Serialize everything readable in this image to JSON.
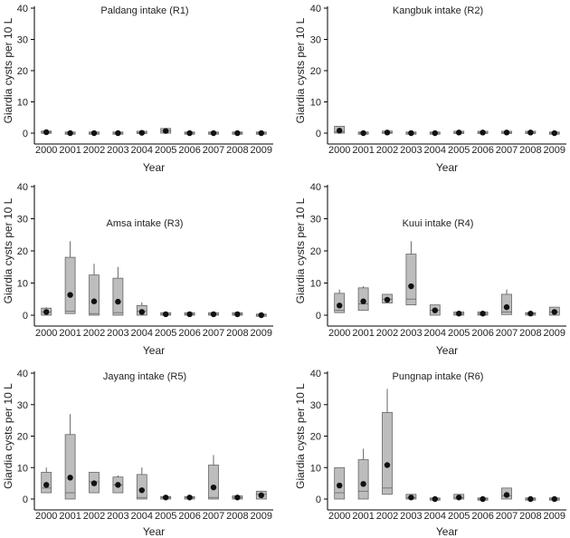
{
  "colors": {
    "box_fill": "#bdbdbd",
    "box_stroke": "#666666",
    "median_dot": "#111111",
    "axis": "#000000"
  },
  "chart_data": [
    {
      "type": "box",
      "title": "Paldang intake (R1)",
      "xlabel": "Year",
      "ylabel": "Giardia cysts per 10 L",
      "ylim": [
        0,
        40
      ],
      "yticks": [
        0,
        10,
        20,
        30,
        40
      ],
      "categories": [
        "2000",
        "2001",
        "2002",
        "2003",
        "2004",
        "2005",
        "2006",
        "2007",
        "2008",
        "2009"
      ],
      "boxes": [
        {
          "q1": 0,
          "median": 0.3,
          "q3": 0.6,
          "whisker_high": 0.6,
          "mean": 0.3
        },
        {
          "q1": 0,
          "median": 0,
          "q3": 0,
          "whisker_high": 0,
          "mean": 0
        },
        {
          "q1": 0,
          "median": 0,
          "q3": 0,
          "whisker_high": 0,
          "mean": 0
        },
        {
          "q1": 0,
          "median": 0,
          "q3": 0,
          "whisker_high": 0,
          "mean": 0
        },
        {
          "q1": 0,
          "median": 0.1,
          "q3": 0.5,
          "whisker_high": 0.5,
          "mean": 0.1
        },
        {
          "q1": 0,
          "median": 0.8,
          "q3": 1.5,
          "whisker_high": 1.5,
          "mean": 0.7
        },
        {
          "q1": 0,
          "median": 0,
          "q3": 0,
          "whisker_high": 0,
          "mean": 0
        },
        {
          "q1": 0,
          "median": 0,
          "q3": 0,
          "whisker_high": 0,
          "mean": 0
        },
        {
          "q1": 0,
          "median": 0,
          "q3": 0,
          "whisker_high": 0,
          "mean": 0
        },
        {
          "q1": 0,
          "median": 0,
          "q3": 0,
          "whisker_high": 0,
          "mean": 0
        }
      ]
    },
    {
      "type": "box",
      "title": "Kangbuk intake (R2)",
      "xlabel": "Year",
      "ylabel": "Giardia cysts per 10 L",
      "ylim": [
        0,
        40
      ],
      "yticks": [
        0,
        10,
        20,
        30,
        40
      ],
      "categories": [
        "2000",
        "2001",
        "2002",
        "2003",
        "2004",
        "2005",
        "2006",
        "2007",
        "2008",
        "2009"
      ],
      "boxes": [
        {
          "q1": 0,
          "median": 0.5,
          "q3": 2.2,
          "whisker_high": 2.2,
          "mean": 0.8
        },
        {
          "q1": 0,
          "median": 0,
          "q3": 0,
          "whisker_high": 0,
          "mean": 0
        },
        {
          "q1": 0,
          "median": 0.2,
          "q3": 0.6,
          "whisker_high": 0.6,
          "mean": 0.2
        },
        {
          "q1": 0,
          "median": 0,
          "q3": 0,
          "whisker_high": 0,
          "mean": 0
        },
        {
          "q1": 0,
          "median": 0,
          "q3": 0,
          "whisker_high": 0,
          "mean": 0
        },
        {
          "q1": 0,
          "median": 0.2,
          "q3": 0.5,
          "whisker_high": 0.5,
          "mean": 0.2
        },
        {
          "q1": 0,
          "median": 0.2,
          "q3": 0.5,
          "whisker_high": 0.5,
          "mean": 0.2
        },
        {
          "q1": 0,
          "median": 0.2,
          "q3": 0.5,
          "whisker_high": 0.5,
          "mean": 0.2
        },
        {
          "q1": 0,
          "median": 0.2,
          "q3": 0.5,
          "whisker_high": 0.5,
          "mean": 0.2
        },
        {
          "q1": 0,
          "median": 0,
          "q3": 0,
          "whisker_high": 0,
          "mean": 0
        }
      ]
    },
    {
      "type": "box",
      "title": "Amsa intake (R3)",
      "xlabel": "Year",
      "ylabel": "Giardia cysts per 10 L",
      "ylim": [
        0,
        40
      ],
      "yticks": [
        0,
        10,
        20,
        30,
        40
      ],
      "categories": [
        "2000",
        "2001",
        "2002",
        "2003",
        "2004",
        "2005",
        "2006",
        "2007",
        "2008",
        "2009"
      ],
      "boxes": [
        {
          "q1": 0,
          "median": 1.0,
          "q3": 2.2,
          "whisker_high": 2.5,
          "mean": 1.0
        },
        {
          "q1": 0.5,
          "median": 1.2,
          "q3": 18,
          "whisker_high": 23,
          "mean": 6.3
        },
        {
          "q1": 0,
          "median": 0.5,
          "q3": 12.5,
          "whisker_high": 16,
          "mean": 4.3
        },
        {
          "q1": 0,
          "median": 0.8,
          "q3": 11.5,
          "whisker_high": 15,
          "mean": 4.2
        },
        {
          "q1": 0,
          "median": 1.2,
          "q3": 3.0,
          "whisker_high": 4.0,
          "mean": 1.0
        },
        {
          "q1": 0,
          "median": 0.3,
          "q3": 0.8,
          "whisker_high": 0.8,
          "mean": 0.3
        },
        {
          "q1": 0,
          "median": 0.3,
          "q3": 0.8,
          "whisker_high": 0.8,
          "mean": 0.3
        },
        {
          "q1": 0,
          "median": 0.3,
          "q3": 0.8,
          "whisker_high": 0.8,
          "mean": 0.3
        },
        {
          "q1": 0,
          "median": 0.3,
          "q3": 0.8,
          "whisker_high": 0.8,
          "mean": 0.3
        },
        {
          "q1": 0,
          "median": 0,
          "q3": 0,
          "whisker_high": 0,
          "mean": 0
        }
      ]
    },
    {
      "type": "box",
      "title": "Kuui intake (R4)",
      "xlabel": "Year",
      "ylabel": "Giardia cysts per 10 L",
      "ylim": [
        0,
        40
      ],
      "yticks": [
        0,
        10,
        20,
        30,
        40
      ],
      "categories": [
        "2000",
        "2001",
        "2002",
        "2003",
        "2004",
        "2005",
        "2006",
        "2007",
        "2008",
        "2009"
      ],
      "boxes": [
        {
          "q1": 0.8,
          "median": 1.5,
          "q3": 6.8,
          "whisker_high": 8,
          "mean": 3.0
        },
        {
          "q1": 1.5,
          "median": 3.5,
          "q3": 8.5,
          "whisker_high": 9,
          "mean": 4.3
        },
        {
          "q1": 3.8,
          "median": 5.0,
          "q3": 6.5,
          "whisker_high": 6.5,
          "mean": 4.8
        },
        {
          "q1": 3.2,
          "median": 5.0,
          "q3": 19,
          "whisker_high": 23,
          "mean": 9.0
        },
        {
          "q1": 0,
          "median": 1.5,
          "q3": 3.2,
          "whisker_high": 3.2,
          "mean": 1.5
        },
        {
          "q1": 0,
          "median": 0.5,
          "q3": 1.0,
          "whisker_high": 1.0,
          "mean": 0.5
        },
        {
          "q1": 0,
          "median": 0.5,
          "q3": 1.0,
          "whisker_high": 1.0,
          "mean": 0.5
        },
        {
          "q1": 0.2,
          "median": 1.0,
          "q3": 6.5,
          "whisker_high": 8,
          "mean": 2.5
        },
        {
          "q1": 0,
          "median": 0.5,
          "q3": 0.8,
          "whisker_high": 0.8,
          "mean": 0.5
        },
        {
          "q1": 0,
          "median": 1.0,
          "q3": 2.5,
          "whisker_high": 2.5,
          "mean": 1.0
        }
      ]
    },
    {
      "type": "box",
      "title": "Jayang intake (R5)",
      "xlabel": "Year",
      "ylabel": "Giardia cysts per 10 L",
      "ylim": [
        0,
        40
      ],
      "yticks": [
        0,
        10,
        20,
        30,
        40
      ],
      "categories": [
        "2000",
        "2001",
        "2002",
        "2003",
        "2004",
        "2005",
        "2006",
        "2007",
        "2008",
        "2009"
      ],
      "boxes": [
        {
          "q1": 2.0,
          "median": 3.5,
          "q3": 8.5,
          "whisker_high": 10,
          "mean": 4.5
        },
        {
          "q1": 0,
          "median": 2.0,
          "q3": 20.5,
          "whisker_high": 27,
          "mean": 6.8
        },
        {
          "q1": 2.0,
          "median": 5.5,
          "q3": 8.5,
          "whisker_high": 8.5,
          "mean": 5.0
        },
        {
          "q1": 2.0,
          "median": 4.5,
          "q3": 7.0,
          "whisker_high": 7.5,
          "mean": 4.5
        },
        {
          "q1": 0,
          "median": 0.5,
          "q3": 7.8,
          "whisker_high": 10,
          "mean": 2.8
        },
        {
          "q1": 0,
          "median": 0.5,
          "q3": 0.8,
          "whisker_high": 0.8,
          "mean": 0.5
        },
        {
          "q1": 0,
          "median": 0.5,
          "q3": 0.8,
          "whisker_high": 0.8,
          "mean": 0.5
        },
        {
          "q1": 0,
          "median": 0.5,
          "q3": 10.8,
          "whisker_high": 14,
          "mean": 3.7
        },
        {
          "q1": 0,
          "median": 0.5,
          "q3": 1.0,
          "whisker_high": 1.0,
          "mean": 0.5
        },
        {
          "q1": 0,
          "median": 1.5,
          "q3": 2.5,
          "whisker_high": 2.5,
          "mean": 1.2
        }
      ]
    },
    {
      "type": "box",
      "title": "Pungnap intake (R6)",
      "xlabel": "Year",
      "ylabel": "Giardia cysts per 10 L",
      "ylim": [
        0,
        40
      ],
      "yticks": [
        0,
        10,
        20,
        30,
        40
      ],
      "categories": [
        "2000",
        "2001",
        "2002",
        "2003",
        "2004",
        "2005",
        "2006",
        "2007",
        "2008",
        "2009"
      ],
      "boxes": [
        {
          "q1": 0,
          "median": 2.0,
          "q3": 10,
          "whisker_high": 10,
          "mean": 4.3
        },
        {
          "q1": 0,
          "median": 2.5,
          "q3": 12.5,
          "whisker_high": 16,
          "mean": 4.8
        },
        {
          "q1": 1.5,
          "median": 3.5,
          "q3": 27.5,
          "whisker_high": 35,
          "mean": 10.8
        },
        {
          "q1": 0,
          "median": 0.5,
          "q3": 1.5,
          "whisker_high": 1.5,
          "mean": 0.5
        },
        {
          "q1": 0,
          "median": 0,
          "q3": 0,
          "whisker_high": 0,
          "mean": 0
        },
        {
          "q1": 0,
          "median": 0.5,
          "q3": 1.5,
          "whisker_high": 1.5,
          "mean": 0.5
        },
        {
          "q1": 0,
          "median": 0,
          "q3": 0,
          "whisker_high": 0,
          "mean": 0
        },
        {
          "q1": 0,
          "median": 1.0,
          "q3": 3.5,
          "whisker_high": 3.5,
          "mean": 1.3
        },
        {
          "q1": 0,
          "median": 0,
          "q3": 0,
          "whisker_high": 0,
          "mean": 0
        },
        {
          "q1": 0,
          "median": 0,
          "q3": 0,
          "whisker_high": 0,
          "mean": 0
        }
      ]
    }
  ]
}
